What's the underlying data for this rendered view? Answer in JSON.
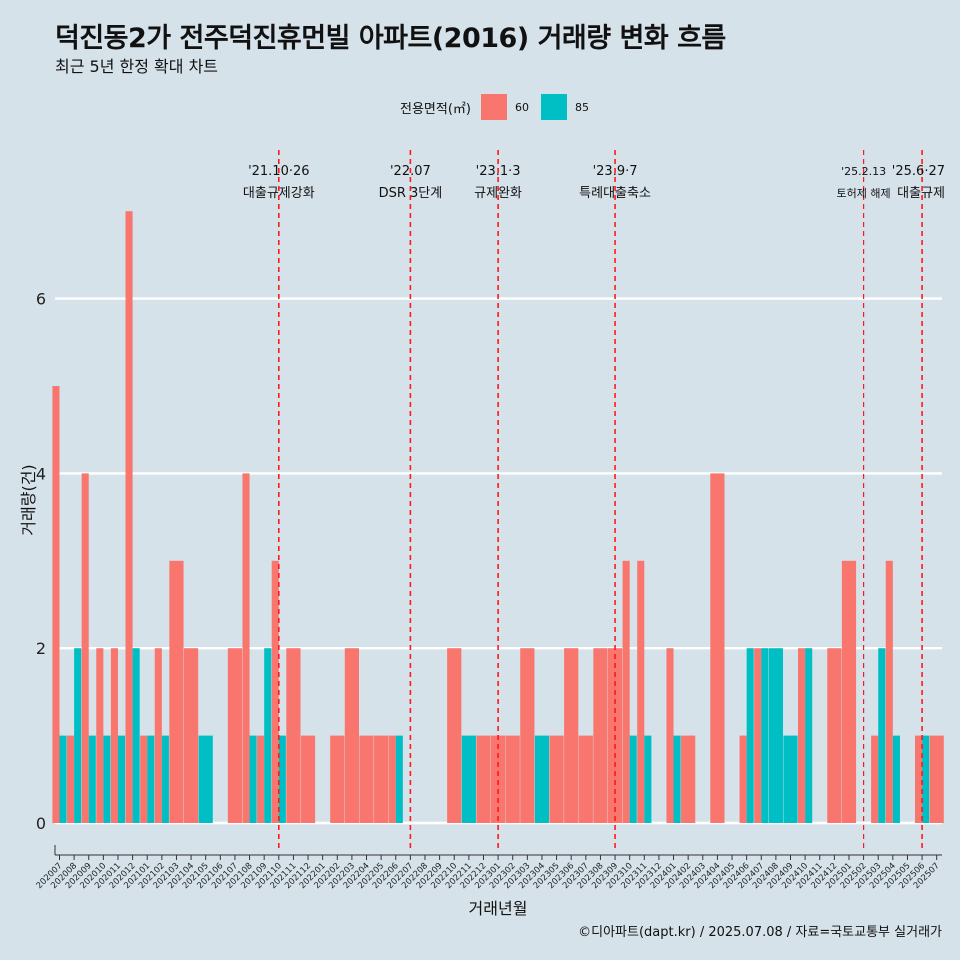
{
  "title": "덕진동2가 전주덕진휴먼빌 아파트(2016) 거래량 변화 흐름",
  "subtitle": "최근 5년 한정 확대 차트",
  "caption": "©디아파트(dapt.kr) / 2025.07.08 / 자료=국토교통부 실거래가",
  "legend": {
    "title": "전용면적(㎡)",
    "items": [
      {
        "label": "60",
        "color": "#f8766d"
      },
      {
        "label": "85",
        "color": "#00bfc4"
      }
    ]
  },
  "chart_data": {
    "type": "bar",
    "title": "덕진동2가 전주덕진휴먼빌 아파트(2016) 거래량 변화 흐름",
    "xlabel": "거래년월",
    "ylabel": "거래량(건)",
    "ylim": [
      -0.3,
      7.3
    ],
    "yticks": [
      0,
      2,
      4,
      6
    ],
    "categories": [
      "202007",
      "202008",
      "202009",
      "202010",
      "202011",
      "202012",
      "202101",
      "202102",
      "202103",
      "202104",
      "202105",
      "202106",
      "202107",
      "202108",
      "202109",
      "202110",
      "202111",
      "202112",
      "202201",
      "202202",
      "202203",
      "202204",
      "202205",
      "202206",
      "202207",
      "202208",
      "202209",
      "202210",
      "202211",
      "202212",
      "202301",
      "202302",
      "202303",
      "202304",
      "202305",
      "202306",
      "202307",
      "202308",
      "202309",
      "202310",
      "202311",
      "202312",
      "202401",
      "202402",
      "202403",
      "202404",
      "202405",
      "202406",
      "202407",
      "202408",
      "202409",
      "202410",
      "202411",
      "202412",
      "202501",
      "202502",
      "202503",
      "202504",
      "202505",
      "202506",
      "202507"
    ],
    "series": [
      {
        "name": "60",
        "color": "#f8766d",
        "values": [
          5,
          1,
          4,
          2,
          2,
          7,
          1,
          2,
          3,
          2,
          0,
          0,
          2,
          4,
          1,
          3,
          2,
          1,
          0,
          1,
          2,
          1,
          1,
          1,
          0,
          0,
          0,
          2,
          0,
          1,
          1,
          1,
          2,
          0,
          1,
          2,
          1,
          2,
          2,
          3,
          3,
          0,
          2,
          1,
          0,
          4,
          0,
          1,
          2,
          0,
          0,
          2,
          0,
          2,
          3,
          0,
          1,
          3,
          0,
          1,
          1
        ]
      },
      {
        "name": "85",
        "color": "#00bfc4",
        "values": [
          1,
          2,
          1,
          1,
          1,
          2,
          1,
          1,
          0,
          0,
          1,
          0,
          0,
          1,
          2,
          1,
          0,
          0,
          0,
          0,
          0,
          0,
          0,
          1,
          0,
          0,
          0,
          0,
          1,
          0,
          0,
          0,
          0,
          1,
          0,
          0,
          0,
          0,
          0,
          1,
          1,
          0,
          1,
          0,
          0,
          0,
          0,
          2,
          2,
          2,
          1,
          2,
          0,
          0,
          0,
          0,
          2,
          1,
          0,
          1,
          0
        ]
      }
    ],
    "annotations": [
      {
        "at": "202110",
        "date": "'21.10·26",
        "label": "대출규제강화",
        "small": false
      },
      {
        "at": "202207",
        "date": "'22.07",
        "label": "DSR 3단계",
        "small": false
      },
      {
        "at": "202301",
        "date": "'23.1·3",
        "label": "규제완화",
        "small": false
      },
      {
        "at": "202309",
        "date": "'23.9·7",
        "label": "특례대출축소",
        "small": false
      },
      {
        "at": "202502",
        "date": "'25.2.13",
        "label": "토허제 해제",
        "small": true
      },
      {
        "at": "202506",
        "date": "'25.6·27",
        "label": "대출규제",
        "small": false
      }
    ],
    "grid": true
  }
}
